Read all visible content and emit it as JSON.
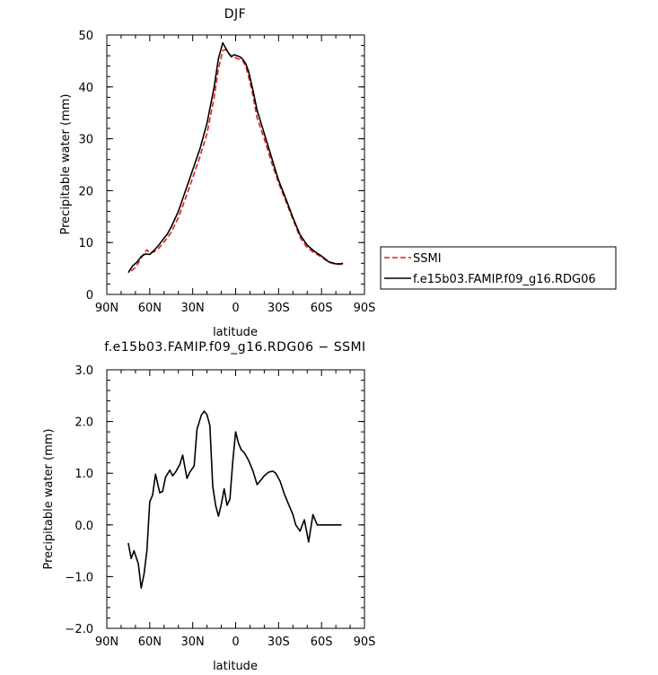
{
  "chart_data": [
    {
      "type": "line",
      "title": "DJF",
      "xlabel": "latitude",
      "ylabel": "Precipitable water (mm)",
      "xlim": [
        90,
        -90
      ],
      "ylim": [
        0,
        50
      ],
      "xticks": [
        90,
        60,
        30,
        0,
        -30,
        -60,
        -90
      ],
      "xtick_labels": [
        "90N",
        "60N",
        "30N",
        "0",
        "30S",
        "60S",
        "90S"
      ],
      "yticks": [
        0,
        10,
        20,
        30,
        40,
        50
      ],
      "ytick_labels": [
        "0",
        "10",
        "20",
        "30",
        "40",
        "50"
      ],
      "grid": false,
      "legend": "outside-right",
      "series": [
        {
          "name": "SSMI",
          "color": "#e0201e",
          "dash": "dashed",
          "x": [
            73,
            70,
            67,
            64,
            62,
            60,
            57,
            54,
            51,
            48,
            45,
            40,
            35,
            30,
            25,
            20,
            15,
            12,
            9,
            7,
            5,
            3,
            1,
            0,
            -1,
            -3,
            -5,
            -7,
            -9,
            -12,
            -15,
            -20,
            -25,
            -30,
            -35,
            -40,
            -45,
            -50,
            -55,
            -60,
            -65,
            -70,
            -73,
            -75
          ],
          "y": [
            4.5,
            5.2,
            6.5,
            8.0,
            8.6,
            8.0,
            8.2,
            8.8,
            9.8,
            10.8,
            12.0,
            14.8,
            18.5,
            22.5,
            26.5,
            31.0,
            38.0,
            43.5,
            47.0,
            47.2,
            46.5,
            46.0,
            45.8,
            45.6,
            45.5,
            45.3,
            45.0,
            44.0,
            42.0,
            38.5,
            34.0,
            30.0,
            25.5,
            21.5,
            18.0,
            14.5,
            11.0,
            9.0,
            8.0,
            7.2,
            6.2,
            5.8,
            5.8,
            5.9
          ]
        },
        {
          "name": "f.e15b03.FAMIP.f09_g16.RDG06",
          "color": "#000000",
          "dash": "solid",
          "x": [
            75,
            72,
            69,
            66,
            63,
            60,
            57,
            54,
            51,
            48,
            45,
            40,
            35,
            30,
            25,
            20,
            15,
            12,
            9,
            7,
            5,
            3,
            1,
            0,
            -1,
            -3,
            -5,
            -7,
            -9,
            -12,
            -15,
            -20,
            -25,
            -30,
            -35,
            -40,
            -45,
            -50,
            -55,
            -60,
            -65,
            -70,
            -73,
            -75
          ],
          "y": [
            4.2,
            5.5,
            6.2,
            7.3,
            7.8,
            7.7,
            8.5,
            9.4,
            10.5,
            11.5,
            13.0,
            16.0,
            20.0,
            24.0,
            28.0,
            33.0,
            40.0,
            45.5,
            48.5,
            47.5,
            46.5,
            45.8,
            46.2,
            46.1,
            46.0,
            45.8,
            45.3,
            44.5,
            43.0,
            39.5,
            35.5,
            31.0,
            26.5,
            22.0,
            18.5,
            14.8,
            11.5,
            9.5,
            8.3,
            7.4,
            6.3,
            5.9,
            5.9,
            6.0
          ]
        }
      ]
    },
    {
      "type": "line",
      "title": "f.e15b03.FAMIP.f09_g16.RDG06 − SSMI",
      "xlabel": "latitude",
      "ylabel": "Precipitable water (mm)",
      "xlim": [
        90,
        -90
      ],
      "ylim": [
        -2.0,
        3.0
      ],
      "xticks": [
        90,
        60,
        30,
        0,
        -30,
        -60,
        -90
      ],
      "xtick_labels": [
        "90N",
        "60N",
        "30N",
        "0",
        "30S",
        "60S",
        "90S"
      ],
      "yticks": [
        -2.0,
        -1.0,
        0.0,
        1.0,
        2.0,
        3.0
      ],
      "ytick_labels": [
        "−2.0",
        "−1.0",
        "0.0",
        "1.0",
        "2.0",
        "3.0"
      ],
      "grid": false,
      "series": [
        {
          "color": "#000000",
          "dash": "solid",
          "x": [
            75,
            73,
            71,
            68,
            66,
            64,
            62,
            60,
            58,
            56,
            53,
            51,
            49,
            46,
            44,
            42,
            39,
            37,
            34,
            32,
            29,
            27,
            24,
            22,
            20,
            18,
            16,
            14,
            12,
            10,
            8,
            6,
            4,
            2,
            0,
            -2,
            -4,
            -6,
            -9,
            -12,
            -15,
            -18,
            -20,
            -23,
            -26,
            -28,
            -31,
            -34,
            -37,
            -40,
            -42,
            -45,
            -48,
            -51,
            -54,
            -57,
            -60,
            -63,
            -66,
            -68,
            -70,
            -72,
            -74
          ],
          "y": [
            -0.35,
            -0.65,
            -0.5,
            -0.75,
            -1.22,
            -0.95,
            -0.5,
            0.45,
            0.58,
            0.98,
            0.62,
            0.65,
            0.92,
            1.06,
            0.95,
            1.02,
            1.17,
            1.35,
            0.9,
            1.02,
            1.14,
            1.85,
            2.12,
            2.2,
            2.13,
            1.92,
            0.75,
            0.38,
            0.17,
            0.4,
            0.7,
            0.38,
            0.5,
            1.23,
            1.8,
            1.58,
            1.45,
            1.4,
            1.25,
            1.05,
            0.78,
            0.88,
            0.95,
            1.02,
            1.04,
            1.0,
            0.85,
            0.6,
            0.4,
            0.2,
            0.0,
            -0.12,
            0.1,
            -0.33,
            0.2,
            0.0,
            0.0,
            0.0,
            0.0,
            0.0,
            0.0,
            0.0,
            0.0
          ]
        }
      ]
    }
  ],
  "legend_entries": [
    "SSMI",
    "f.e15b03.FAMIP.f09_g16.RDG06"
  ]
}
